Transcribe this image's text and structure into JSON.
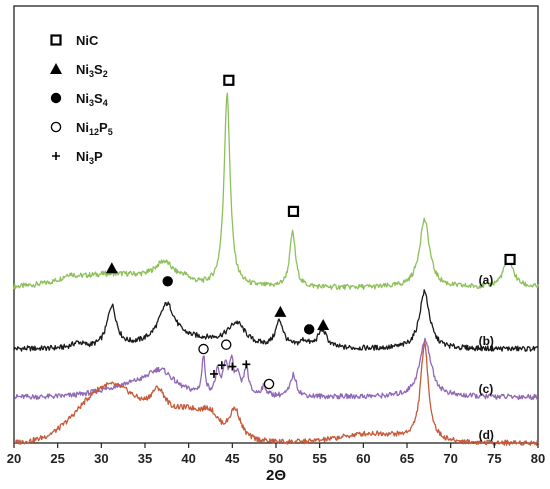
{
  "chart_data": {
    "type": "line",
    "xlabel": "2Θ",
    "ylabel": "",
    "xlim": [
      20,
      80
    ],
    "xticks": [
      20,
      25,
      30,
      35,
      40,
      45,
      50,
      55,
      60,
      65,
      70,
      75,
      80
    ],
    "yticks_shown": false,
    "legend": {
      "placement": "top-left",
      "entries": [
        {
          "symbol": "open-square",
          "label_parts": [
            [
              "NiC",
              ""
            ]
          ]
        },
        {
          "symbol": "filled-triangle",
          "label_parts": [
            [
              "Ni",
              ""
            ],
            [
              "3",
              "sub"
            ],
            [
              "S",
              ""
            ],
            [
              "2",
              "sub"
            ]
          ]
        },
        {
          "symbol": "filled-circle",
          "label_parts": [
            [
              "Ni",
              ""
            ],
            [
              "3",
              "sub"
            ],
            [
              "S",
              ""
            ],
            [
              "4",
              "sub"
            ]
          ]
        },
        {
          "symbol": "open-circle",
          "label_parts": [
            [
              "Ni",
              ""
            ],
            [
              "12",
              "sub"
            ],
            [
              "P",
              ""
            ],
            [
              "5",
              "sub"
            ]
          ]
        },
        {
          "symbol": "plus",
          "label_parts": [
            [
              "Ni",
              ""
            ],
            [
              "3",
              "sub"
            ],
            [
              "P",
              ""
            ]
          ]
        }
      ]
    },
    "series": [
      {
        "name": "(a)",
        "color": "#8dc05a",
        "baseline": 0.645,
        "peaks": [
          [
            26.3,
            0.012,
            0.8
          ],
          [
            37.2,
            0.045,
            1.3
          ],
          [
            39.5,
            0.012,
            0.8
          ],
          [
            44.4,
            0.44,
            0.42
          ],
          [
            51.9,
            0.125,
            0.4
          ],
          [
            67.0,
            0.155,
            0.7
          ],
          [
            76.6,
            0.065,
            0.7
          ]
        ],
        "humps": [
          [
            31,
            0.03,
            7
          ]
        ]
      },
      {
        "name": "(b)",
        "color": "#1a1a1a",
        "baseline": 0.785,
        "peaks": [
          [
            27.3,
            0.012,
            0.8
          ],
          [
            31.2,
            0.095,
            0.65
          ],
          [
            37.5,
            0.085,
            1.1
          ],
          [
            45.5,
            0.05,
            1.2
          ],
          [
            50.4,
            0.06,
            0.55
          ],
          [
            53.2,
            0.015,
            0.6
          ],
          [
            55.3,
            0.042,
            0.6
          ],
          [
            67.0,
            0.13,
            0.7
          ]
        ],
        "humps": [
          [
            40,
            0.02,
            6
          ]
        ]
      },
      {
        "name": "(c)",
        "color": "#9068b4",
        "baseline": 0.895,
        "peaks": [
          [
            36.8,
            0.045,
            1.8
          ],
          [
            41.7,
            0.085,
            0.22
          ],
          [
            43.3,
            0.05,
            0.3
          ],
          [
            44.2,
            0.065,
            0.3
          ],
          [
            44.9,
            0.07,
            0.3
          ],
          [
            45.6,
            0.04,
            0.3
          ],
          [
            46.6,
            0.065,
            0.3
          ],
          [
            48.6,
            0.02,
            0.4
          ],
          [
            52.0,
            0.05,
            0.4
          ],
          [
            67.1,
            0.13,
            0.8
          ]
        ],
        "humps": [
          [
            34,
            0.025,
            5
          ]
        ]
      },
      {
        "name": "(d)",
        "color": "#c55a3a",
        "baseline": 1.0,
        "peaks": [
          [
            36.5,
            0.07,
            1.2
          ],
          [
            42.5,
            0.04,
            1.2
          ],
          [
            45.3,
            0.07,
            0.8
          ],
          [
            67.0,
            0.22,
            0.55
          ]
        ],
        "humps": [
          [
            31,
            0.13,
            5
          ],
          [
            40,
            0.06,
            3
          ],
          [
            61,
            0.02,
            5
          ]
        ]
      }
    ],
    "annotations": [
      {
        "symbol": "open-square",
        "x": 44.6,
        "y": 0.17
      },
      {
        "symbol": "open-square",
        "x": 52.0,
        "y": 0.47
      },
      {
        "symbol": "open-square",
        "x": 76.8,
        "y": 0.58
      },
      {
        "symbol": "filled-triangle",
        "x": 31.2,
        "y": 0.6
      },
      {
        "symbol": "filled-triangle",
        "x": 50.5,
        "y": 0.7
      },
      {
        "symbol": "filled-triangle",
        "x": 55.4,
        "y": 0.73
      },
      {
        "symbol": "filled-circle",
        "x": 37.6,
        "y": 0.63
      },
      {
        "symbol": "filled-circle",
        "x": 53.8,
        "y": 0.74
      },
      {
        "symbol": "open-circle",
        "x": 41.7,
        "y": 0.785
      },
      {
        "symbol": "open-circle",
        "x": 44.3,
        "y": 0.775
      },
      {
        "symbol": "open-circle",
        "x": 49.2,
        "y": 0.865
      },
      {
        "symbol": "plus",
        "x": 42.9,
        "y": 0.842
      },
      {
        "symbol": "plus",
        "x": 43.8,
        "y": 0.822
      },
      {
        "symbol": "plus",
        "x": 45.0,
        "y": 0.825
      },
      {
        "symbol": "plus",
        "x": 46.6,
        "y": 0.82
      }
    ]
  }
}
